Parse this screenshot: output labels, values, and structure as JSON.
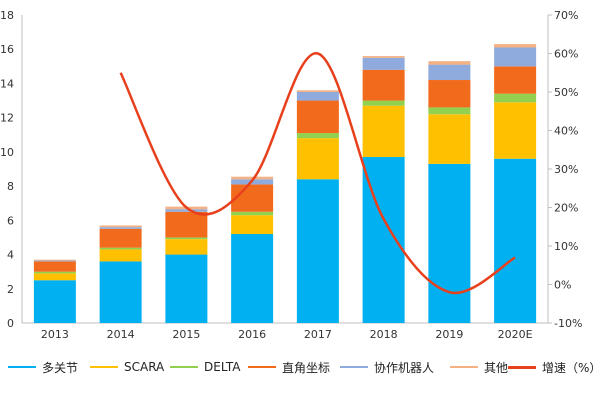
{
  "chart_data": {
    "type": "bar",
    "stacked": true,
    "categories": [
      "2013",
      "2014",
      "2015",
      "2016",
      "2017",
      "2018",
      "2019",
      "2020E"
    ],
    "series": [
      {
        "name": "多关节",
        "color": "#00b0f0",
        "values": [
          2.5,
          3.6,
          4.0,
          5.2,
          8.4,
          9.7,
          9.3,
          9.6
        ]
      },
      {
        "name": "SCARA",
        "color": "#ffc000",
        "values": [
          0.4,
          0.7,
          0.9,
          1.1,
          2.4,
          3.0,
          2.9,
          3.3
        ]
      },
      {
        "name": "DELTA",
        "color": "#92d050",
        "values": [
          0.1,
          0.1,
          0.1,
          0.2,
          0.3,
          0.3,
          0.4,
          0.5
        ]
      },
      {
        "name": "直角坐标",
        "color": "#f26b1d",
        "values": [
          0.6,
          1.1,
          1.5,
          1.6,
          1.9,
          1.8,
          1.6,
          1.6
        ]
      },
      {
        "name": "协作机器人",
        "color": "#8faadc",
        "values": [
          0.05,
          0.1,
          0.15,
          0.3,
          0.5,
          0.7,
          0.9,
          1.1
        ]
      },
      {
        "name": "其他",
        "color": "#f4b183",
        "values": [
          0.05,
          0.1,
          0.15,
          0.15,
          0.1,
          0.1,
          0.2,
          0.2
        ]
      }
    ],
    "growth": {
      "name": "增速（%）",
      "color": "#e8401c",
      "values": [
        null,
        55,
        20,
        27,
        60,
        17,
        -2,
        7
      ]
    },
    "y_left": {
      "min": 0,
      "max": 18,
      "ticks": [
        "0",
        "2",
        "4",
        "6",
        "8",
        "10",
        "12",
        "14",
        "16",
        "18"
      ]
    },
    "y_right": {
      "min": -10,
      "max": 70,
      "ticks": [
        "-10%",
        "0%",
        "10%",
        "20%",
        "30%",
        "40%",
        "50%",
        "60%",
        "70%"
      ]
    },
    "grid": false,
    "legend_position": "bottom"
  },
  "legend": {
    "items": [
      "多关节",
      "SCARA",
      "DELTA",
      "直角坐标",
      "协作机器人",
      "其他",
      "增速（%）"
    ]
  }
}
